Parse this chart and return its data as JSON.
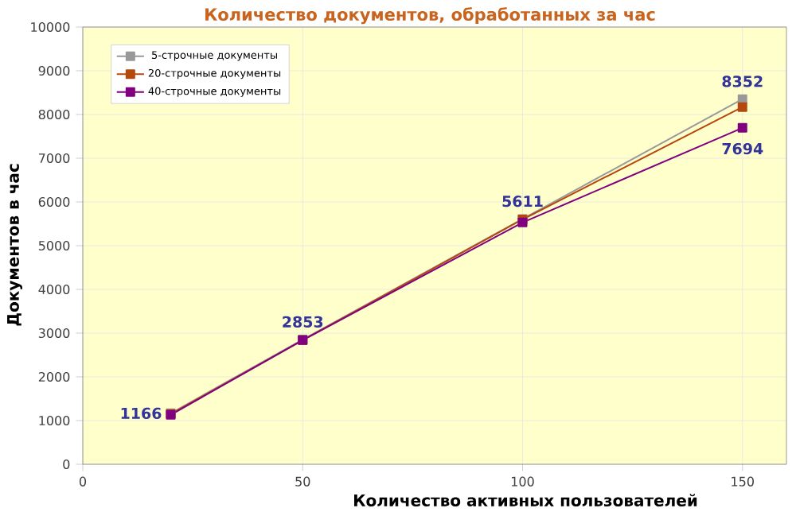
{
  "chart_data": {
    "type": "line",
    "title": "Количество документов, обработанных за час",
    "xlabel": "Количество активных пользователей",
    "ylabel": "Документов в час",
    "x": [
      20,
      50,
      100,
      150
    ],
    "series": [
      {
        "name": "5-строчные документы",
        "color": "#999999",
        "values": [
          1166,
          2853,
          5611,
          8352
        ],
        "value_labels": [
          "1166",
          "2853",
          "5611",
          "8352"
        ]
      },
      {
        "name": "20-строчные документы",
        "color": "#b5470f",
        "values": [
          1150,
          2840,
          5600,
          8170
        ]
      },
      {
        "name": "40-строчные документы",
        "color": "#800080",
        "values": [
          1130,
          2840,
          5530,
          7694
        ],
        "value_labels": [
          null,
          null,
          null,
          "7694"
        ]
      }
    ],
    "xlim": [
      0,
      160
    ],
    "xticks": [
      0,
      50,
      100,
      150
    ],
    "ylim": [
      0,
      10000
    ],
    "yticks": [
      0,
      1000,
      2000,
      3000,
      4000,
      5000,
      6000,
      7000,
      8000,
      9000,
      10000
    ],
    "grid": true,
    "legend": "top left",
    "marker": "square",
    "line_style": "solid"
  }
}
